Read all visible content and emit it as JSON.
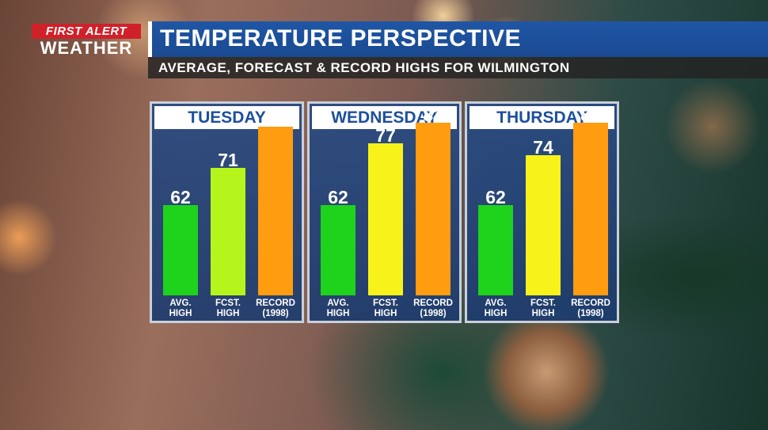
{
  "logo": {
    "line1": "FIRST ALERT",
    "line2": "WEATHER"
  },
  "header": {
    "title": "TEMPERATURE PERSPECTIVE",
    "subtitle": "AVERAGE, FORECAST & RECORD HIGHS FOR WILMINGTON"
  },
  "chart_data": {
    "type": "bar",
    "categories": [
      "AVG. HIGH",
      "FCST. HIGH",
      "RECORD (1998)"
    ],
    "category_lines": [
      [
        "AVG.",
        "HIGH"
      ],
      [
        "FCST.",
        "HIGH"
      ],
      [
        "RECORD",
        "(1998)"
      ]
    ],
    "panels": [
      {
        "day": "TUESDAY",
        "values": [
          62,
          71,
          81
        ],
        "colors": [
          "#1fd21c",
          "#b6f51c",
          "#ff9c0f"
        ]
      },
      {
        "day": "WEDNESDAY",
        "values": [
          62,
          77,
          82
        ],
        "colors": [
          "#1fd21c",
          "#f7f21a",
          "#ff9c0f"
        ]
      },
      {
        "day": "THURSDAY",
        "values": [
          62,
          74,
          82
        ],
        "colors": [
          "#1fd21c",
          "#f7f21a",
          "#ff9c0f"
        ]
      }
    ],
    "ylim": [
      40,
      85
    ]
  }
}
